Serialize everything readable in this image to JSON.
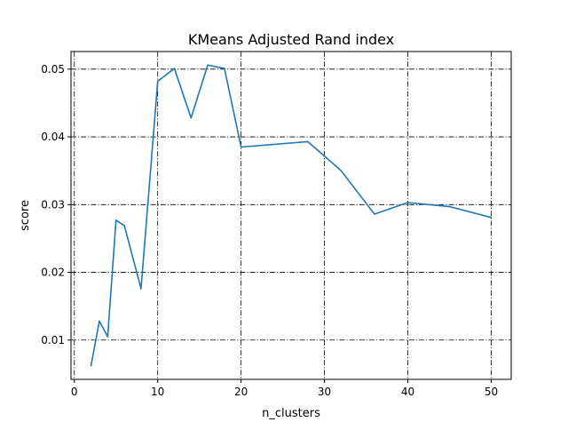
{
  "chart_data": {
    "type": "line",
    "title": "KMeans Adjusted Rand index",
    "xlabel": "n_clusters",
    "ylabel": "score",
    "xlim": [
      -0.4,
      52.4
    ],
    "ylim": [
      0.0042,
      0.0526
    ],
    "x_ticks": [
      0,
      10,
      20,
      30,
      40,
      50
    ],
    "y_ticks": [
      0.01,
      0.02,
      0.03,
      0.04,
      0.05
    ],
    "x_tick_labels": [
      "0",
      "10",
      "20",
      "30",
      "40",
      "50"
    ],
    "y_tick_labels": [
      "0.01",
      "0.02",
      "0.03",
      "0.04",
      "0.05"
    ],
    "grid": true,
    "grid_style": "dash-dot",
    "series": [
      {
        "color": "#1f77b4",
        "x": [
          2,
          3,
          4,
          5,
          6,
          8,
          10,
          12,
          14,
          16,
          18,
          20,
          28,
          32,
          36,
          40,
          45,
          50
        ],
        "values": [
          0.0062,
          0.0128,
          0.0105,
          0.0277,
          0.0269,
          0.0176,
          0.0482,
          0.0501,
          0.0428,
          0.0506,
          0.0501,
          0.0385,
          0.0393,
          0.035,
          0.0286,
          0.0303,
          0.0297,
          0.0281
        ]
      }
    ]
  }
}
